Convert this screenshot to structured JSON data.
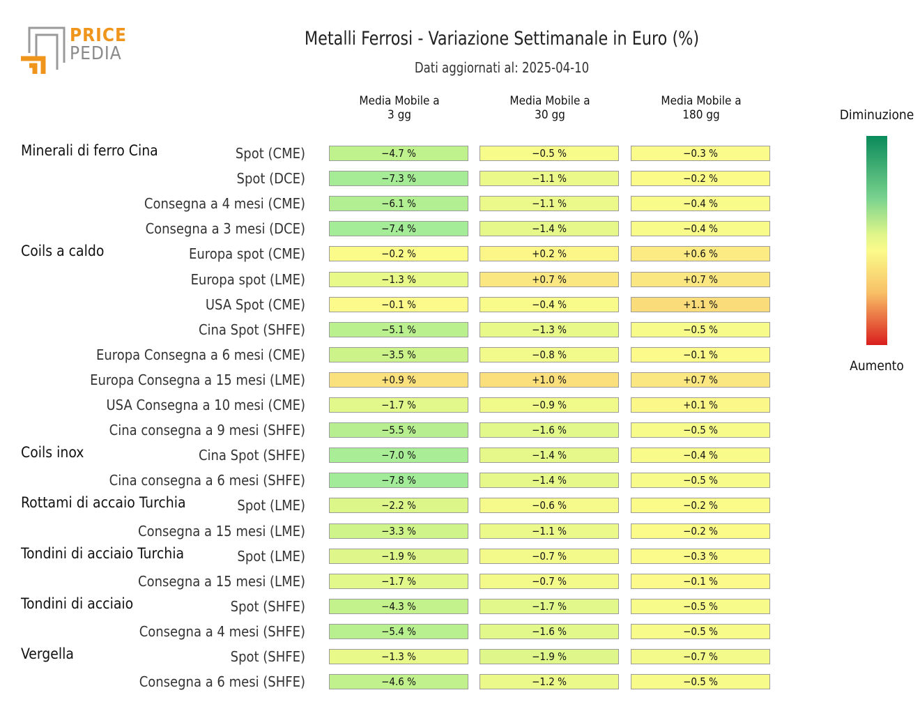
{
  "header": {
    "logo_line1": "PRICE",
    "logo_line2": "PEDIA",
    "title": "Metalli Ferrosi - Variazione Settimanale in Euro (%)",
    "subtitle": "Dati aggiornati al: 2025-04-10"
  },
  "legend": {
    "top": "Diminuzione",
    "bottom": "Aumento"
  },
  "colors": {
    "logo_orange": "#f0951c",
    "logo_grey": "#8a8a8a"
  },
  "chart_data": {
    "type": "table",
    "columns": [
      {
        "line1": "Media Mobile a",
        "line2": "3 gg"
      },
      {
        "line1": "Media Mobile a",
        "line2": "30 gg"
      },
      {
        "line1": "Media Mobile a",
        "line2": "180 gg"
      }
    ],
    "groups": [
      {
        "name": "Minerali di ferro Cina",
        "rows": [
          {
            "label": "Spot (CME)",
            "values": [
              -4.7,
              -0.5,
              -0.3
            ]
          },
          {
            "label": "Spot (DCE)",
            "values": [
              -7.3,
              -1.1,
              -0.2
            ]
          },
          {
            "label": "Consegna a 4 mesi (CME)",
            "values": [
              -6.1,
              -1.1,
              -0.4
            ]
          },
          {
            "label": "Consegna a 3 mesi (DCE)",
            "values": [
              -7.4,
              -1.4,
              -0.4
            ]
          }
        ]
      },
      {
        "name": "Coils a caldo",
        "rows": [
          {
            "label": "Europa spot (CME)",
            "values": [
              -0.2,
              0.2,
              0.6
            ]
          },
          {
            "label": "Europa spot (LME)",
            "values": [
              -1.3,
              0.7,
              0.7
            ]
          },
          {
            "label": "USA Spot (CME)",
            "values": [
              -0.1,
              -0.4,
              1.1
            ]
          },
          {
            "label": "Cina Spot (SHFE)",
            "values": [
              -5.1,
              -1.3,
              -0.5
            ]
          },
          {
            "label": "Europa Consegna a 6 mesi (CME)",
            "values": [
              -3.5,
              -0.8,
              -0.1
            ]
          },
          {
            "label": "Europa Consegna a 15 mesi (LME)",
            "values": [
              0.9,
              1.0,
              0.7
            ]
          },
          {
            "label": "USA Consegna a 10 mesi (CME)",
            "values": [
              -1.7,
              -0.9,
              0.1
            ]
          },
          {
            "label": "Cina consegna a 9 mesi (SHFE)",
            "values": [
              -5.5,
              -1.6,
              -0.5
            ]
          }
        ]
      },
      {
        "name": "Coils inox",
        "rows": [
          {
            "label": "Cina Spot (SHFE)",
            "values": [
              -7.0,
              -1.4,
              -0.4
            ]
          },
          {
            "label": "Cina consegna a 6 mesi (SHFE)",
            "values": [
              -7.8,
              -1.4,
              -0.5
            ]
          }
        ]
      },
      {
        "name": "Rottami di accaio Turchia",
        "rows": [
          {
            "label": "Spot (LME)",
            "values": [
              -2.2,
              -0.6,
              -0.2
            ]
          },
          {
            "label": "Consegna a 15 mesi (LME)",
            "values": [
              -3.3,
              -1.1,
              -0.2
            ]
          }
        ]
      },
      {
        "name": "Tondini di acciaio Turchia",
        "rows": [
          {
            "label": "Spot (LME)",
            "values": [
              -1.9,
              -0.7,
              -0.3
            ]
          },
          {
            "label": "Consegna a 15 mesi (LME)",
            "values": [
              -1.7,
              -0.7,
              -0.1
            ]
          }
        ]
      },
      {
        "name": "Tondini di acciaio",
        "rows": [
          {
            "label": "Spot (SHFE)",
            "values": [
              -4.3,
              -1.7,
              -0.5
            ]
          },
          {
            "label": "Consegna a 4 mesi (SHFE)",
            "values": [
              -5.4,
              -1.6,
              -0.5
            ]
          }
        ]
      },
      {
        "name": "Vergella",
        "rows": [
          {
            "label": "Spot (SHFE)",
            "values": [
              -1.3,
              -1.9,
              -0.7
            ]
          },
          {
            "label": "Consegna a 6 mesi (SHFE)",
            "values": [
              -4.6,
              -1.2,
              -0.5
            ]
          }
        ]
      }
    ]
  }
}
